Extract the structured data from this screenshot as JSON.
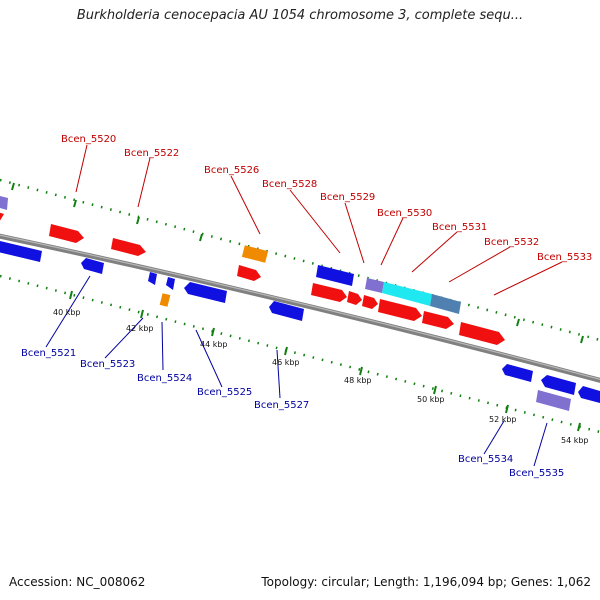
{
  "title": "Burkholderia cenocepacia AU 1054 chromosome 3, complete sequ...",
  "footer": {
    "accession": "Accession: NC_008062",
    "summary": "Topology: circular; Length: 1,196,094 bp; Genes: 1,062"
  },
  "colors": {
    "forward_gene": "#f01010",
    "reverse_gene": "#1010e0",
    "rna_gene": "#f08a00",
    "highlight_gene": "#8070d0",
    "cyan_gene": "#20e8f0",
    "steel_gene": "#5080b0",
    "backbone": "#808080",
    "tick": "#108010",
    "top_label": "#c00000",
    "bottom_label": "#0000a0"
  },
  "scale_labels": [
    "40 kbp",
    "42 kbp",
    "44 kbp",
    "46 kbp",
    "48 kbp",
    "50 kbp",
    "52 kbp",
    "54 kbp"
  ],
  "genes_top": [
    "Bcen_5520",
    "Bcen_5522",
    "Bcen_5526",
    "Bcen_5528",
    "Bcen_5529",
    "Bcen_5530",
    "Bcen_5531",
    "Bcen_5532",
    "Bcen_5533"
  ],
  "genes_bottom": [
    "Bcen_5521",
    "Bcen_5523",
    "Bcen_5524",
    "Bcen_5525",
    "Bcen_5527",
    "Bcen_5534",
    "Bcen_5535"
  ]
}
